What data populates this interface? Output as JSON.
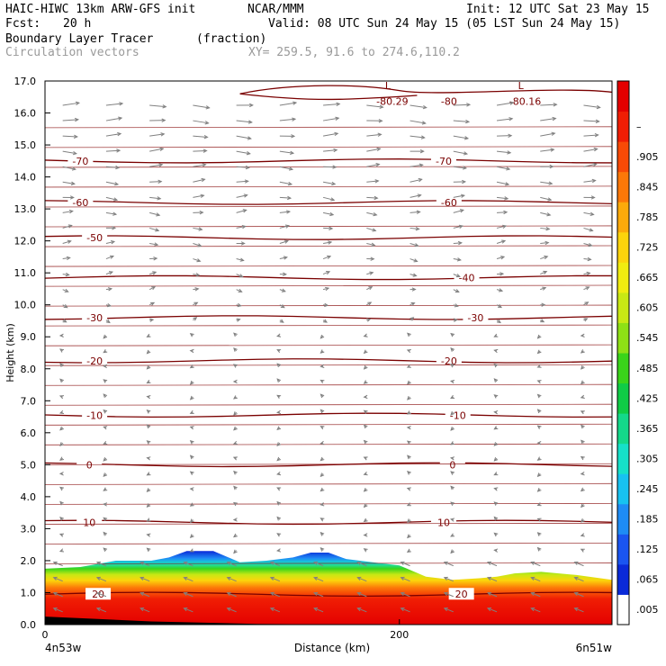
{
  "header": {
    "model": "HAIC-HIWC 13km ARW-GFS init",
    "org": "NCAR/MMM",
    "init": "Init: 12 UTC Sat 23 May 15",
    "fcst_label": "Fcst:",
    "fcst_value": "20 h",
    "valid": "Valid: 08 UTC Sun 24 May 15 (05 LST Sun 24 May 15)",
    "field": "Boundary Layer Tracer",
    "field_units": "(fraction)",
    "overlay": "Circulation vectors",
    "xy": "XY= 259.5, 91.6 to 274.6,110.2"
  },
  "chart_data": {
    "type": "heatmap",
    "xlabel": "Distance (km)",
    "ylabel": "Height (km)",
    "xlim": [
      0,
      320
    ],
    "ylim": [
      0,
      17
    ],
    "xticks": [
      "0",
      "200"
    ],
    "x_endpoints": {
      "left": "4n53w",
      "right": "6n51w"
    },
    "yticks": [
      "0.0",
      "1.0",
      "2.0",
      "3.0",
      "4.0",
      "5.0",
      "6.0",
      "7.0",
      "8.0",
      "9.0",
      "10.0",
      "11.0",
      "12.0",
      "13.0",
      "14.0",
      "15.0",
      "16.0",
      "17.0"
    ],
    "colorbar": {
      "labels": [
        ".005",
        ".065",
        ".125",
        ".185",
        ".245",
        ".305",
        ".365",
        ".425",
        ".485",
        ".545",
        ".605",
        ".665",
        ".725",
        ".785",
        ".845",
        ".905",
        "–"
      ],
      "colors": [
        "#ffffff",
        "#0a2ad8",
        "#1a55f0",
        "#1e8cf5",
        "#17c2f0",
        "#16e0c8",
        "#14d88a",
        "#10cc46",
        "#3ad41a",
        "#8ee016",
        "#c8e814",
        "#f0ec10",
        "#fcd40c",
        "#fcaa0a",
        "#fc7808",
        "#f84a06",
        "#f01e04",
        "#e40000"
      ]
    },
    "tracer_top_km": [
      {
        "x": 0,
        "z": 1.75
      },
      {
        "x": 20,
        "z": 1.8
      },
      {
        "x": 40,
        "z": 2.0
      },
      {
        "x": 60,
        "z": 2.0
      },
      {
        "x": 70,
        "z": 2.1
      },
      {
        "x": 80,
        "z": 2.3
      },
      {
        "x": 95,
        "z": 2.3
      },
      {
        "x": 110,
        "z": 1.95
      },
      {
        "x": 125,
        "z": 2.0
      },
      {
        "x": 140,
        "z": 2.1
      },
      {
        "x": 150,
        "z": 2.25
      },
      {
        "x": 160,
        "z": 2.25
      },
      {
        "x": 170,
        "z": 2.05
      },
      {
        "x": 185,
        "z": 1.95
      },
      {
        "x": 200,
        "z": 1.85
      },
      {
        "x": 215,
        "z": 1.5
      },
      {
        "x": 230,
        "z": 1.4
      },
      {
        "x": 245,
        "z": 1.45
      },
      {
        "x": 255,
        "z": 1.5
      },
      {
        "x": 265,
        "z": 1.6
      },
      {
        "x": 280,
        "z": 1.65
      },
      {
        "x": 300,
        "z": 1.55
      },
      {
        "x": 320,
        "z": 1.4
      }
    ],
    "temperature_contours_C": [
      {
        "label": "20",
        "z": 0.95,
        "label_x": [
          30,
          235
        ]
      },
      {
        "label": "10",
        "z": 3.2,
        "label_x": [
          25,
          225
        ]
      },
      {
        "label": "0",
        "z": 5.0,
        "label_x": [
          25,
          230
        ]
      },
      {
        "label": "-10",
        "z": 6.55,
        "label_x": [
          28,
          233
        ]
      },
      {
        "label": "-20",
        "z": 8.25,
        "label_x": [
          28,
          228
        ]
      },
      {
        "label": "-30",
        "z": 9.6,
        "label_x": [
          28,
          243
        ]
      },
      {
        "label": "-40",
        "z": 10.85,
        "label_x": [
          238
        ]
      },
      {
        "label": "-50",
        "z": 12.1,
        "label_x": [
          28
        ]
      },
      {
        "label": "-60",
        "z": 13.2,
        "label_x": [
          20,
          228
        ]
      },
      {
        "label": "-70",
        "z": 14.5,
        "label_x": [
          20,
          225
        ]
      }
    ],
    "minima": [
      {
        "label": "L",
        "value": "-80.29",
        "x": 195,
        "z": 16.6
      },
      {
        "label": "L",
        "value": "-80.16",
        "x": 270,
        "z": 16.6
      }
    ],
    "extra_label": {
      "label": "-80",
      "x": 228,
      "z": 16.45
    }
  }
}
